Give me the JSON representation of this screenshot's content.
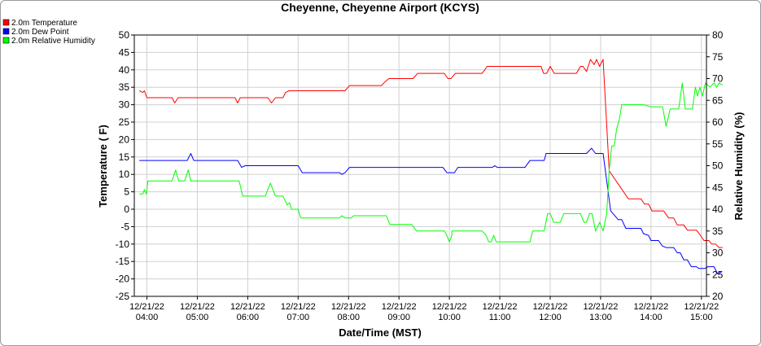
{
  "chart_data": {
    "type": "line",
    "title": "Cheyenne, Cheyenne Airport (KCYS)",
    "xlabel": "Date/Time (MST)",
    "ylabel": "Temperature ( F)",
    "y2label": "Relative Humidity (%)",
    "ylim": [
      -25,
      50
    ],
    "y2lim": [
      20,
      80
    ],
    "yticks": [
      -25,
      -20,
      -15,
      -10,
      -5,
      0,
      5,
      10,
      15,
      20,
      25,
      30,
      35,
      40,
      45,
      50
    ],
    "y2ticks": [
      20,
      25,
      30,
      35,
      40,
      45,
      50,
      55,
      60,
      65,
      70,
      75,
      80
    ],
    "xlim": [
      3.75,
      15.1
    ],
    "xticks": [
      {
        "t": 4,
        "date": "12/21/22",
        "time": "04:00"
      },
      {
        "t": 5,
        "date": "12/21/22",
        "time": "05:00"
      },
      {
        "t": 6,
        "date": "12/21/22",
        "time": "06:00"
      },
      {
        "t": 7,
        "date": "12/21/22",
        "time": "07:00"
      },
      {
        "t": 8,
        "date": "12/21/22",
        "time": "08:00"
      },
      {
        "t": 9,
        "date": "12/21/22",
        "time": "09:00"
      },
      {
        "t": 10,
        "date": "12/21/22",
        "time": "10:00"
      },
      {
        "t": 11,
        "date": "12/21/22",
        "time": "11:00"
      },
      {
        "t": 12,
        "date": "12/21/22",
        "time": "12:00"
      },
      {
        "t": 13,
        "date": "12/21/22",
        "time": "13:00"
      },
      {
        "t": 14,
        "date": "12/21/22",
        "time": "14:00"
      },
      {
        "t": 15,
        "date": "12/21/22",
        "time": "15:00"
      }
    ],
    "grid": true,
    "legend_position": "top-left",
    "series": [
      {
        "name": "2.0m Temperature",
        "color": "#ff0000",
        "axis": "left",
        "points": [
          [
            3.85,
            34
          ],
          [
            3.92,
            33.5
          ],
          [
            3.95,
            34
          ],
          [
            4.0,
            32
          ],
          [
            4.5,
            32
          ],
          [
            4.55,
            30.5
          ],
          [
            4.62,
            32
          ],
          [
            5.75,
            32
          ],
          [
            5.8,
            30.5
          ],
          [
            5.85,
            32
          ],
          [
            6.4,
            32
          ],
          [
            6.47,
            30.5
          ],
          [
            6.55,
            32
          ],
          [
            6.7,
            32
          ],
          [
            6.75,
            33.5
          ],
          [
            6.82,
            34
          ],
          [
            7.93,
            34
          ],
          [
            8.02,
            35.5
          ],
          [
            8.65,
            35.5
          ],
          [
            8.72,
            36.5
          ],
          [
            8.8,
            37.5
          ],
          [
            9.28,
            37.5
          ],
          [
            9.37,
            39
          ],
          [
            9.9,
            39
          ],
          [
            9.97,
            37.5
          ],
          [
            10.03,
            37.5
          ],
          [
            10.12,
            39
          ],
          [
            10.65,
            39
          ],
          [
            10.75,
            41
          ],
          [
            11.82,
            41
          ],
          [
            11.87,
            39
          ],
          [
            11.93,
            39
          ],
          [
            12.0,
            41
          ],
          [
            12.08,
            39
          ],
          [
            12.52,
            39
          ],
          [
            12.6,
            41
          ],
          [
            12.65,
            41
          ],
          [
            12.72,
            39.5
          ],
          [
            12.8,
            43
          ],
          [
            12.87,
            41.5
          ],
          [
            12.92,
            43
          ],
          [
            12.98,
            41
          ],
          [
            13.05,
            43
          ],
          [
            13.17,
            11
          ],
          [
            13.55,
            3
          ],
          [
            13.8,
            3
          ],
          [
            13.87,
            1.5
          ],
          [
            13.95,
            1.5
          ],
          [
            14.02,
            -0.5
          ],
          [
            14.25,
            -0.5
          ],
          [
            14.35,
            -2.5
          ],
          [
            14.45,
            -2.5
          ],
          [
            14.52,
            -4.5
          ],
          [
            14.65,
            -4.5
          ],
          [
            14.72,
            -6
          ],
          [
            14.9,
            -6
          ],
          [
            14.98,
            -7.5
          ],
          [
            15.05,
            -9
          ],
          [
            15.15,
            -9
          ],
          [
            15.2,
            -10
          ],
          [
            15.28,
            -10
          ],
          [
            15.35,
            -11
          ],
          [
            15.42,
            -11
          ]
        ]
      },
      {
        "name": "2.0m Dew Point",
        "color": "#0000ff",
        "axis": "left",
        "points": [
          [
            3.85,
            14
          ],
          [
            4.8,
            14
          ],
          [
            4.87,
            16
          ],
          [
            4.93,
            14
          ],
          [
            5.8,
            14
          ],
          [
            5.88,
            12
          ],
          [
            5.95,
            12.5
          ],
          [
            7.0,
            12.5
          ],
          [
            7.08,
            10.5
          ],
          [
            7.82,
            10.5
          ],
          [
            7.87,
            10
          ],
          [
            7.93,
            10.5
          ],
          [
            8.02,
            12
          ],
          [
            9.87,
            12
          ],
          [
            9.95,
            10.5
          ],
          [
            10.1,
            10.5
          ],
          [
            10.17,
            12
          ],
          [
            10.85,
            12
          ],
          [
            10.9,
            12.5
          ],
          [
            10.95,
            12
          ],
          [
            11.5,
            12
          ],
          [
            11.6,
            14
          ],
          [
            11.88,
            14
          ],
          [
            11.92,
            16
          ],
          [
            12.72,
            16
          ],
          [
            12.82,
            17.5
          ],
          [
            12.9,
            16
          ],
          [
            13.05,
            16
          ],
          [
            13.2,
            -0.5
          ],
          [
            13.35,
            -3
          ],
          [
            13.42,
            -3
          ],
          [
            13.5,
            -5.5
          ],
          [
            13.8,
            -5.5
          ],
          [
            13.85,
            -7
          ],
          [
            13.95,
            -7.5
          ],
          [
            14.0,
            -9
          ],
          [
            14.15,
            -9
          ],
          [
            14.22,
            -10.5
          ],
          [
            14.3,
            -11
          ],
          [
            14.45,
            -11
          ],
          [
            14.52,
            -12.5
          ],
          [
            14.58,
            -12.5
          ],
          [
            14.65,
            -14.5
          ],
          [
            14.72,
            -14.5
          ],
          [
            14.8,
            -16.5
          ],
          [
            14.9,
            -16.5
          ],
          [
            14.95,
            -17
          ],
          [
            15.07,
            -17
          ],
          [
            15.13,
            -16.5
          ],
          [
            15.25,
            -16.5
          ],
          [
            15.32,
            -18.5
          ],
          [
            15.4,
            -18
          ]
        ]
      },
      {
        "name": "2.0m Relative Humidity",
        "color": "#00ff00",
        "axis": "right",
        "points": [
          [
            3.85,
            43.5
          ],
          [
            3.92,
            43.5
          ],
          [
            3.95,
            44.5
          ],
          [
            3.99,
            43.5
          ],
          [
            4.02,
            46.5
          ],
          [
            4.5,
            46.5
          ],
          [
            4.57,
            49
          ],
          [
            4.63,
            46.5
          ],
          [
            4.75,
            46.5
          ],
          [
            4.82,
            49
          ],
          [
            4.87,
            46.5
          ],
          [
            5.83,
            46.5
          ],
          [
            5.9,
            43
          ],
          [
            6.35,
            43
          ],
          [
            6.45,
            46
          ],
          [
            6.55,
            43
          ],
          [
            6.7,
            43
          ],
          [
            6.78,
            41
          ],
          [
            6.83,
            41.5
          ],
          [
            6.87,
            40
          ],
          [
            7.0,
            40
          ],
          [
            7.05,
            38
          ],
          [
            7.82,
            38
          ],
          [
            7.87,
            38.5
          ],
          [
            7.93,
            38
          ],
          [
            8.05,
            38
          ],
          [
            8.1,
            38.5
          ],
          [
            8.75,
            38.5
          ],
          [
            8.82,
            36.5
          ],
          [
            9.25,
            36.5
          ],
          [
            9.35,
            35
          ],
          [
            9.9,
            35
          ],
          [
            9.95,
            34
          ],
          [
            10.0,
            32.5
          ],
          [
            10.05,
            34
          ],
          [
            10.05,
            35
          ],
          [
            10.65,
            35
          ],
          [
            10.73,
            34
          ],
          [
            10.78,
            32.5
          ],
          [
            10.83,
            32.5
          ],
          [
            10.88,
            34
          ],
          [
            10.93,
            32.5
          ],
          [
            11.6,
            32.5
          ],
          [
            11.65,
            35
          ],
          [
            11.88,
            35
          ],
          [
            11.95,
            39
          ],
          [
            12.0,
            39
          ],
          [
            12.07,
            37
          ],
          [
            12.2,
            37
          ],
          [
            12.27,
            39
          ],
          [
            12.6,
            39
          ],
          [
            12.67,
            37
          ],
          [
            12.72,
            37
          ],
          [
            12.78,
            39
          ],
          [
            12.83,
            39
          ],
          [
            12.9,
            35
          ],
          [
            12.98,
            37
          ],
          [
            13.05,
            35
          ],
          [
            13.12,
            39
          ],
          [
            13.17,
            49
          ],
          [
            13.22,
            54.5
          ],
          [
            13.27,
            54.5
          ],
          [
            13.32,
            58.5
          ],
          [
            13.37,
            60.5
          ],
          [
            13.42,
            64
          ],
          [
            13.55,
            64
          ],
          [
            13.85,
            64
          ],
          [
            14.0,
            63.5
          ],
          [
            14.23,
            63.5
          ],
          [
            14.3,
            59
          ],
          [
            14.38,
            63
          ],
          [
            14.55,
            63
          ],
          [
            14.62,
            69
          ],
          [
            14.68,
            63
          ],
          [
            14.82,
            63
          ],
          [
            14.88,
            68
          ],
          [
            14.92,
            66
          ],
          [
            14.97,
            68
          ],
          [
            15.02,
            66
          ],
          [
            15.08,
            69
          ],
          [
            15.17,
            68
          ],
          [
            15.25,
            69
          ],
          [
            15.3,
            68
          ],
          [
            15.35,
            69
          ],
          [
            15.42,
            68.5
          ]
        ]
      }
    ]
  }
}
